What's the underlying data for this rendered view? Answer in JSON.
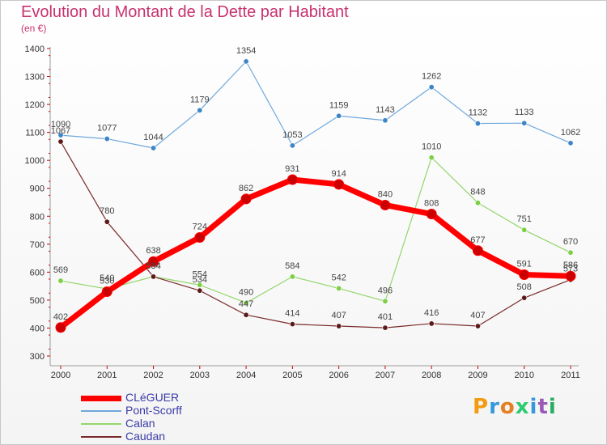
{
  "chart_data": {
    "type": "line",
    "title": "Evolution du Montant de la Dette par Habitant",
    "subtitle": "(en €)",
    "x": [
      "2000",
      "2001",
      "2002",
      "2003",
      "2004",
      "2005",
      "2006",
      "2007",
      "2008",
      "2009",
      "2010",
      "2011"
    ],
    "ylim": [
      300,
      1400
    ],
    "yticks": [
      300,
      400,
      500,
      600,
      700,
      800,
      900,
      1000,
      1100,
      1200,
      1300,
      1400
    ],
    "grid": false,
    "legend_position": "bottom-left",
    "series": [
      {
        "name": "CLéGUER",
        "color": "#ff0000",
        "marker": "#cc0000",
        "values": [
          402,
          530,
          638,
          724,
          862,
          931,
          914,
          840,
          808,
          677,
          591,
          586
        ]
      },
      {
        "name": "Pont-Scorff",
        "color": "#6fa8dc",
        "marker": "#3d85c6",
        "values": [
          1090,
          1077,
          1044,
          1179,
          1354,
          1053,
          1159,
          1143,
          1262,
          1132,
          1133,
          1062
        ]
      },
      {
        "name": "Calan",
        "color": "#93d66c",
        "marker": "#7ccf44",
        "values": [
          569,
          540,
          584,
          554,
          490,
          584,
          542,
          496,
          1010,
          848,
          751,
          670
        ]
      },
      {
        "name": "Caudan",
        "color": "#7a2a2a",
        "marker": "#5c1a1a",
        "values": [
          1067,
          780,
          584,
          534,
          447,
          414,
          407,
          401,
          416,
          407,
          508,
          573
        ]
      }
    ]
  },
  "logo": {
    "text": "Proxiti",
    "letters": [
      "P",
      "r",
      "o",
      "x",
      "i",
      "t",
      "i"
    ],
    "colors": [
      "#f39c12",
      "#3498db",
      "#e67e22",
      "#2ecc71",
      "#3498db",
      "#9b59b6",
      "#27ae60"
    ]
  }
}
